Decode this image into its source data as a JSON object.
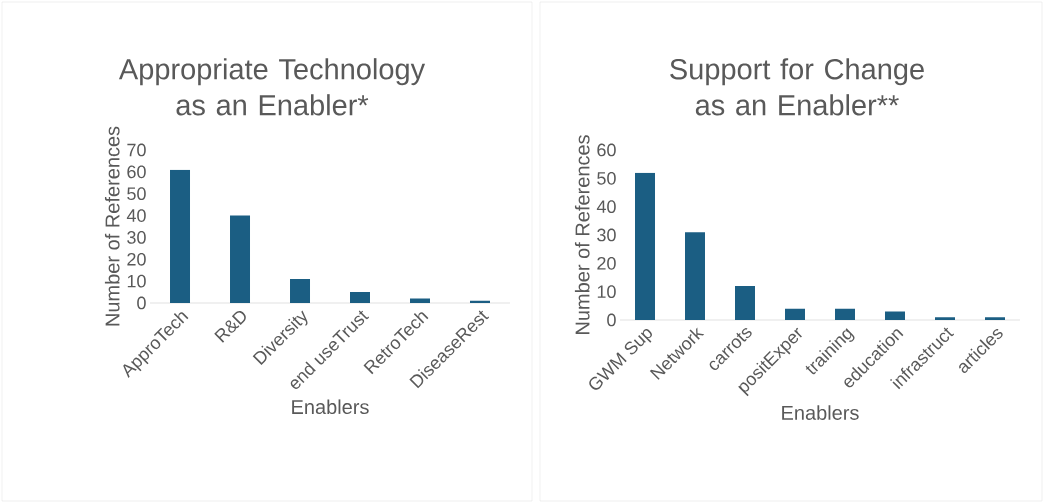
{
  "chart_data": [
    {
      "type": "bar",
      "title": "Appropriate Technology as an Enabler*",
      "xlabel": "Enablers",
      "ylabel": "Number of References",
      "categories": [
        "ApproTech",
        "R&D",
        "Diversity",
        "end useTrust",
        "RetroTech",
        "DiseaseRest"
      ],
      "values": [
        61,
        40,
        11,
        5,
        2,
        1
      ],
      "color": "#1b5e83",
      "ylim": [
        0,
        70
      ],
      "yticks": [
        0,
        10,
        20,
        30,
        40,
        50,
        60,
        70
      ],
      "grid": false
    },
    {
      "type": "bar",
      "title": "Support for Change as an Enabler**",
      "xlabel": "Enablers",
      "ylabel": "Number of References",
      "categories": [
        "GWM Sup",
        "Network",
        "carrots",
        "positExper",
        "training",
        "education",
        "infrastruct",
        "articles"
      ],
      "values": [
        52,
        31,
        12,
        4,
        4,
        3,
        1,
        1
      ],
      "color": "#1b5e83",
      "ylim": [
        0,
        60
      ],
      "yticks": [
        0,
        10,
        20,
        30,
        40,
        50,
        60
      ],
      "grid": false
    }
  ]
}
